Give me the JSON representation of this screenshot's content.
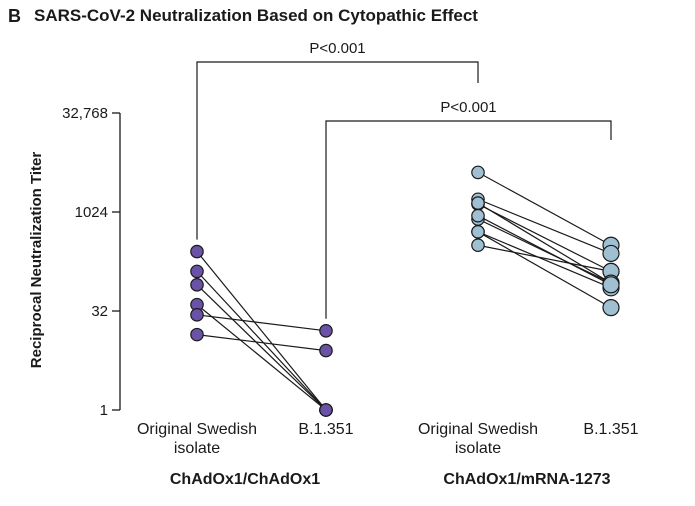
{
  "panel_letter": "B",
  "chart_data": {
    "type": "scatter",
    "title": "SARS-CoV-2 Neutralization Based on Cytopathic Effect",
    "ylabel": "Reciprocal Neutralization Titer",
    "y_scale": "log2",
    "ylim": [
      1,
      32768
    ],
    "yticks": [
      1,
      32,
      1024,
      32768
    ],
    "ytick_labels": [
      "1",
      "32",
      "1024",
      "32,768"
    ],
    "groups": [
      {
        "name": "ChAdOx1/ChAdOx1",
        "categories": [
          "Original Swedish isolate",
          "B.1.351"
        ],
        "category_lines": [
          [
            "Original Swedish",
            "isolate"
          ],
          [
            "B.1.351"
          ]
        ],
        "color": "#6a52a6",
        "pairs": [
          [
            256,
            1
          ],
          [
            128,
            1
          ],
          [
            80,
            1
          ],
          [
            40,
            1
          ],
          [
            28,
            16
          ],
          [
            14,
            8
          ]
        ]
      },
      {
        "name": "ChAdOx1/mRNA-1273",
        "categories": [
          "Original Swedish isolate",
          "B.1.351"
        ],
        "category_lines": [
          [
            "Original Swedish",
            "isolate"
          ],
          [
            "B.1.351"
          ]
        ],
        "color": "#9fc0d3",
        "pairs": [
          [
            4096,
            320
          ],
          [
            1600,
            240
          ],
          [
            1350,
            128
          ],
          [
            800,
            85
          ],
          [
            512,
            72
          ],
          [
            320,
            128
          ],
          [
            1400,
            85
          ],
          [
            900,
            80
          ],
          [
            512,
            36
          ]
        ]
      }
    ],
    "annotations": [
      {
        "text": "P<0.001",
        "from": [
          0,
          0
        ],
        "to": [
          1,
          0
        ]
      },
      {
        "text": "P<0.001",
        "from": [
          0,
          1
        ],
        "to": [
          1,
          1
        ]
      }
    ]
  }
}
